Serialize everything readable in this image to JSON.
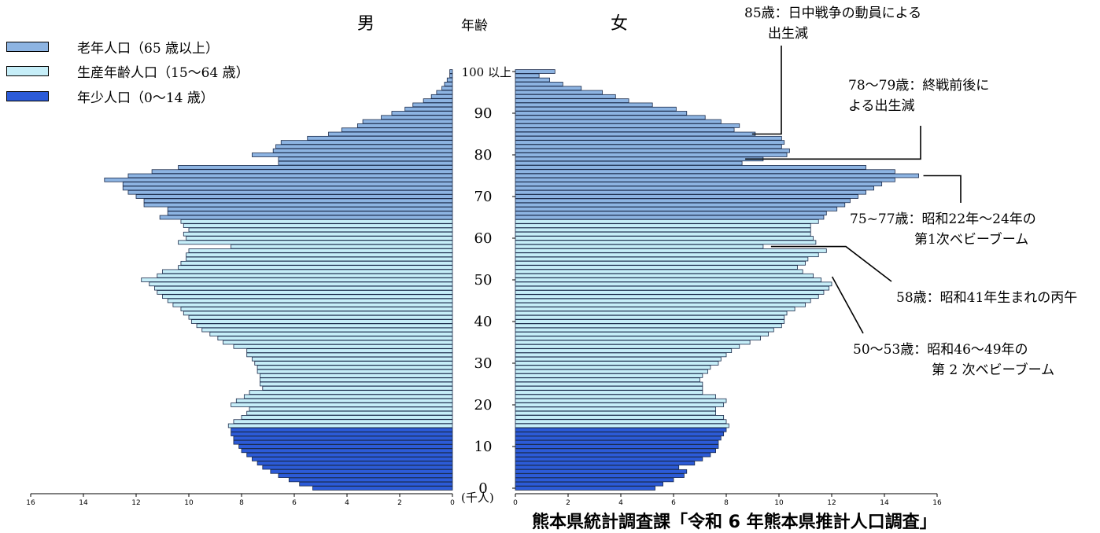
{
  "chart_data": {
    "type": "bar",
    "subtype": "population-pyramid",
    "headers": {
      "male": "男",
      "female": "女",
      "age": "年齢"
    },
    "unit_label": "(千人)",
    "source": "熊本県統計調査課「令和 6 年熊本県推計人口調査」",
    "legend": [
      {
        "label": "老年人口（65 歳以上）",
        "color": "#8db4e2",
        "group": "elderly"
      },
      {
        "label": "生産年齢人口（15〜64 歳）",
        "color": "#c6eef8",
        "group": "working"
      },
      {
        "label": "年少人口（0〜14 歳）",
        "color": "#2c5bd8",
        "group": "young"
      }
    ],
    "age_ticks": [
      "0",
      "10",
      "20",
      "30",
      "40",
      "50",
      "60",
      "70",
      "80",
      "90",
      "100 以上"
    ],
    "x_ticks": [
      0,
      2,
      4,
      6,
      8,
      10,
      12,
      14,
      16
    ],
    "xlim": [
      0,
      16
    ],
    "ages": [
      0,
      1,
      2,
      3,
      4,
      5,
      6,
      7,
      8,
      9,
      10,
      11,
      12,
      13,
      14,
      15,
      16,
      17,
      18,
      19,
      20,
      21,
      22,
      23,
      24,
      25,
      26,
      27,
      28,
      29,
      30,
      31,
      32,
      33,
      34,
      35,
      36,
      37,
      38,
      39,
      40,
      41,
      42,
      43,
      44,
      45,
      46,
      47,
      48,
      49,
      50,
      51,
      52,
      53,
      54,
      55,
      56,
      57,
      58,
      59,
      60,
      61,
      62,
      63,
      64,
      65,
      66,
      67,
      68,
      69,
      70,
      71,
      72,
      73,
      74,
      75,
      76,
      77,
      78,
      79,
      80,
      81,
      82,
      83,
      84,
      85,
      86,
      87,
      88,
      89,
      90,
      91,
      92,
      93,
      94,
      95,
      96,
      97,
      98,
      99,
      100
    ],
    "male": [
      5.3,
      5.8,
      6.2,
      6.6,
      6.9,
      7.2,
      7.4,
      7.6,
      7.8,
      8.0,
      8.1,
      8.3,
      8.3,
      8.4,
      8.4,
      8.5,
      8.3,
      8.0,
      7.8,
      7.7,
      8.4,
      8.2,
      7.9,
      7.7,
      7.2,
      7.3,
      7.3,
      7.3,
      7.4,
      7.4,
      7.5,
      7.6,
      7.8,
      7.8,
      8.3,
      8.7,
      8.9,
      9.2,
      9.5,
      9.7,
      9.9,
      10.0,
      10.2,
      10.3,
      10.6,
      10.8,
      11.0,
      11.2,
      11.3,
      11.5,
      11.8,
      11.2,
      11.0,
      10.4,
      10.3,
      10.1,
      10.1,
      10.0,
      8.4,
      10.4,
      10.1,
      10.2,
      10.0,
      10.2,
      10.3,
      11.1,
      10.8,
      10.8,
      11.7,
      11.7,
      12.0,
      12.3,
      12.5,
      12.5,
      13.2,
      12.3,
      11.4,
      10.4,
      6.6,
      6.6,
      7.6,
      6.8,
      6.7,
      6.5,
      5.5,
      4.7,
      4.2,
      3.6,
      3.4,
      2.7,
      2.3,
      1.8,
      1.5,
      1.1,
      0.8,
      0.6,
      0.4,
      0.3,
      0.2,
      0.1,
      0.1
    ],
    "female": [
      5.3,
      5.6,
      6.0,
      6.4,
      6.5,
      6.2,
      6.8,
      7.1,
      7.4,
      7.6,
      7.7,
      7.7,
      7.8,
      7.9,
      8.0,
      8.1,
      8.0,
      7.9,
      7.6,
      7.6,
      7.9,
      8.0,
      7.6,
      7.1,
      7.1,
      7.1,
      7.0,
      7.1,
      7.3,
      7.4,
      7.7,
      7.8,
      8.0,
      8.2,
      8.5,
      8.9,
      9.3,
      9.6,
      9.8,
      10.1,
      10.2,
      10.2,
      10.3,
      10.6,
      11.0,
      11.2,
      11.5,
      11.7,
      11.9,
      12.0,
      11.6,
      11.3,
      10.9,
      10.7,
      11.0,
      11.1,
      11.5,
      11.8,
      9.4,
      11.4,
      11.3,
      11.2,
      11.2,
      11.2,
      11.5,
      11.7,
      11.8,
      12.2,
      12.5,
      12.7,
      13.0,
      13.3,
      13.6,
      13.9,
      14.4,
      15.3,
      14.4,
      13.3,
      8.6,
      9.4,
      10.3,
      10.4,
      10.1,
      10.2,
      10.1,
      9.1,
      8.3,
      8.5,
      7.8,
      7.2,
      6.5,
      6.1,
      5.2,
      4.3,
      3.8,
      3.3,
      2.5,
      1.8,
      1.3,
      0.9,
      1.5
    ]
  },
  "annotations": [
    {
      "id": "a85",
      "lines": [
        "85歳：日中戦争の動員による",
        "出生減"
      ]
    },
    {
      "id": "a78",
      "lines": [
        "78〜79歳：終戦前後に",
        "よる出生減"
      ]
    },
    {
      "id": "a75",
      "lines": [
        "75~77歳：昭和22年〜24年の",
        "第1次ベビーブーム"
      ]
    },
    {
      "id": "a58",
      "lines": [
        "58歳：昭和41年生まれの丙午"
      ]
    },
    {
      "id": "a50",
      "lines": [
        "50〜53歳：昭和46〜49年の",
        "第 2 次ベビーブーム"
      ]
    }
  ]
}
